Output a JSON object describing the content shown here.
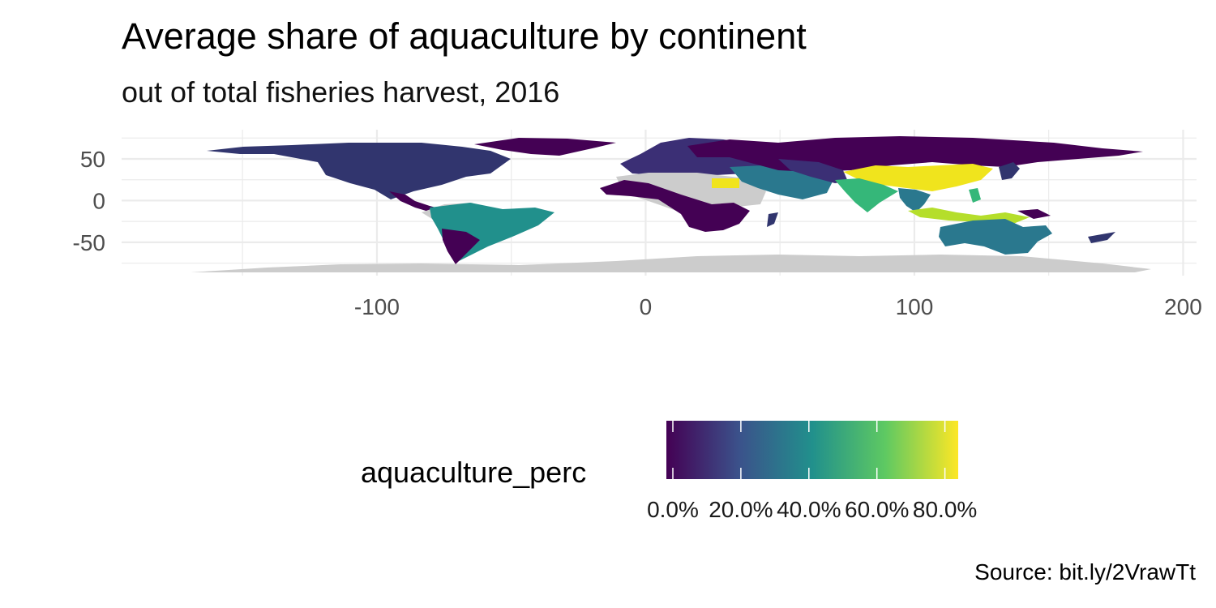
{
  "title": "Average share of aquaculture by continent",
  "subtitle": "out of total fisheries harvest, 2016",
  "caption": "Source: bit.ly/2VrawTt",
  "map": {
    "projection": "longitude/latitude",
    "x_ticks": [
      -100,
      0,
      100,
      200
    ],
    "x_tick_labels": [
      "-100",
      "0",
      "100",
      "200"
    ],
    "y_ticks": [
      50,
      0,
      -50
    ],
    "y_tick_labels": [
      "50",
      "0",
      "-50"
    ],
    "xlim": [
      -195,
      205
    ],
    "ylim": [
      -90,
      85
    ],
    "grid": true,
    "no_data_color": "#cccccc",
    "regions": [
      {
        "region": "North America",
        "value": 0.12,
        "color": "#31356e"
      },
      {
        "region": "Greenland",
        "value": 0.01,
        "color": "#440154"
      },
      {
        "region": "Central America",
        "value": 0.03,
        "color": "#440154"
      },
      {
        "region": "South America",
        "value": 0.48,
        "color": "#21908c"
      },
      {
        "region": "Europe",
        "value": 0.1,
        "color": "#3b2f75"
      },
      {
        "region": "Africa",
        "value": 0.01,
        "color": "#440154"
      },
      {
        "region": "Egypt",
        "value": 0.82,
        "color": "#f0e41d"
      },
      {
        "region": "Middle East",
        "value": 0.35,
        "color": "#2a788e"
      },
      {
        "region": "South Asia",
        "value": 0.55,
        "color": "#35b779"
      },
      {
        "region": "Russia",
        "value": 0.02,
        "color": "#440154"
      },
      {
        "region": "China",
        "value": 0.82,
        "color": "#f0e41d"
      },
      {
        "region": "Southeast Asia",
        "value": 0.7,
        "color": "#b5de2b"
      },
      {
        "region": "Oceania",
        "value": 0.3,
        "color": "#2a788e"
      },
      {
        "region": "Antarctica",
        "value": null,
        "color": "#cccccc"
      }
    ]
  },
  "legend": {
    "title": "aquaculture_perc",
    "min": 0.0,
    "max": 0.82,
    "breaks": [
      0.0,
      0.2,
      0.4,
      0.6,
      0.8
    ],
    "break_labels": [
      "0.0%",
      "20.0%",
      "40.0%",
      "60.0%",
      "80.0%"
    ],
    "palette": [
      "#440154",
      "#3b528b",
      "#21908c",
      "#5ec962",
      "#fde725"
    ]
  }
}
